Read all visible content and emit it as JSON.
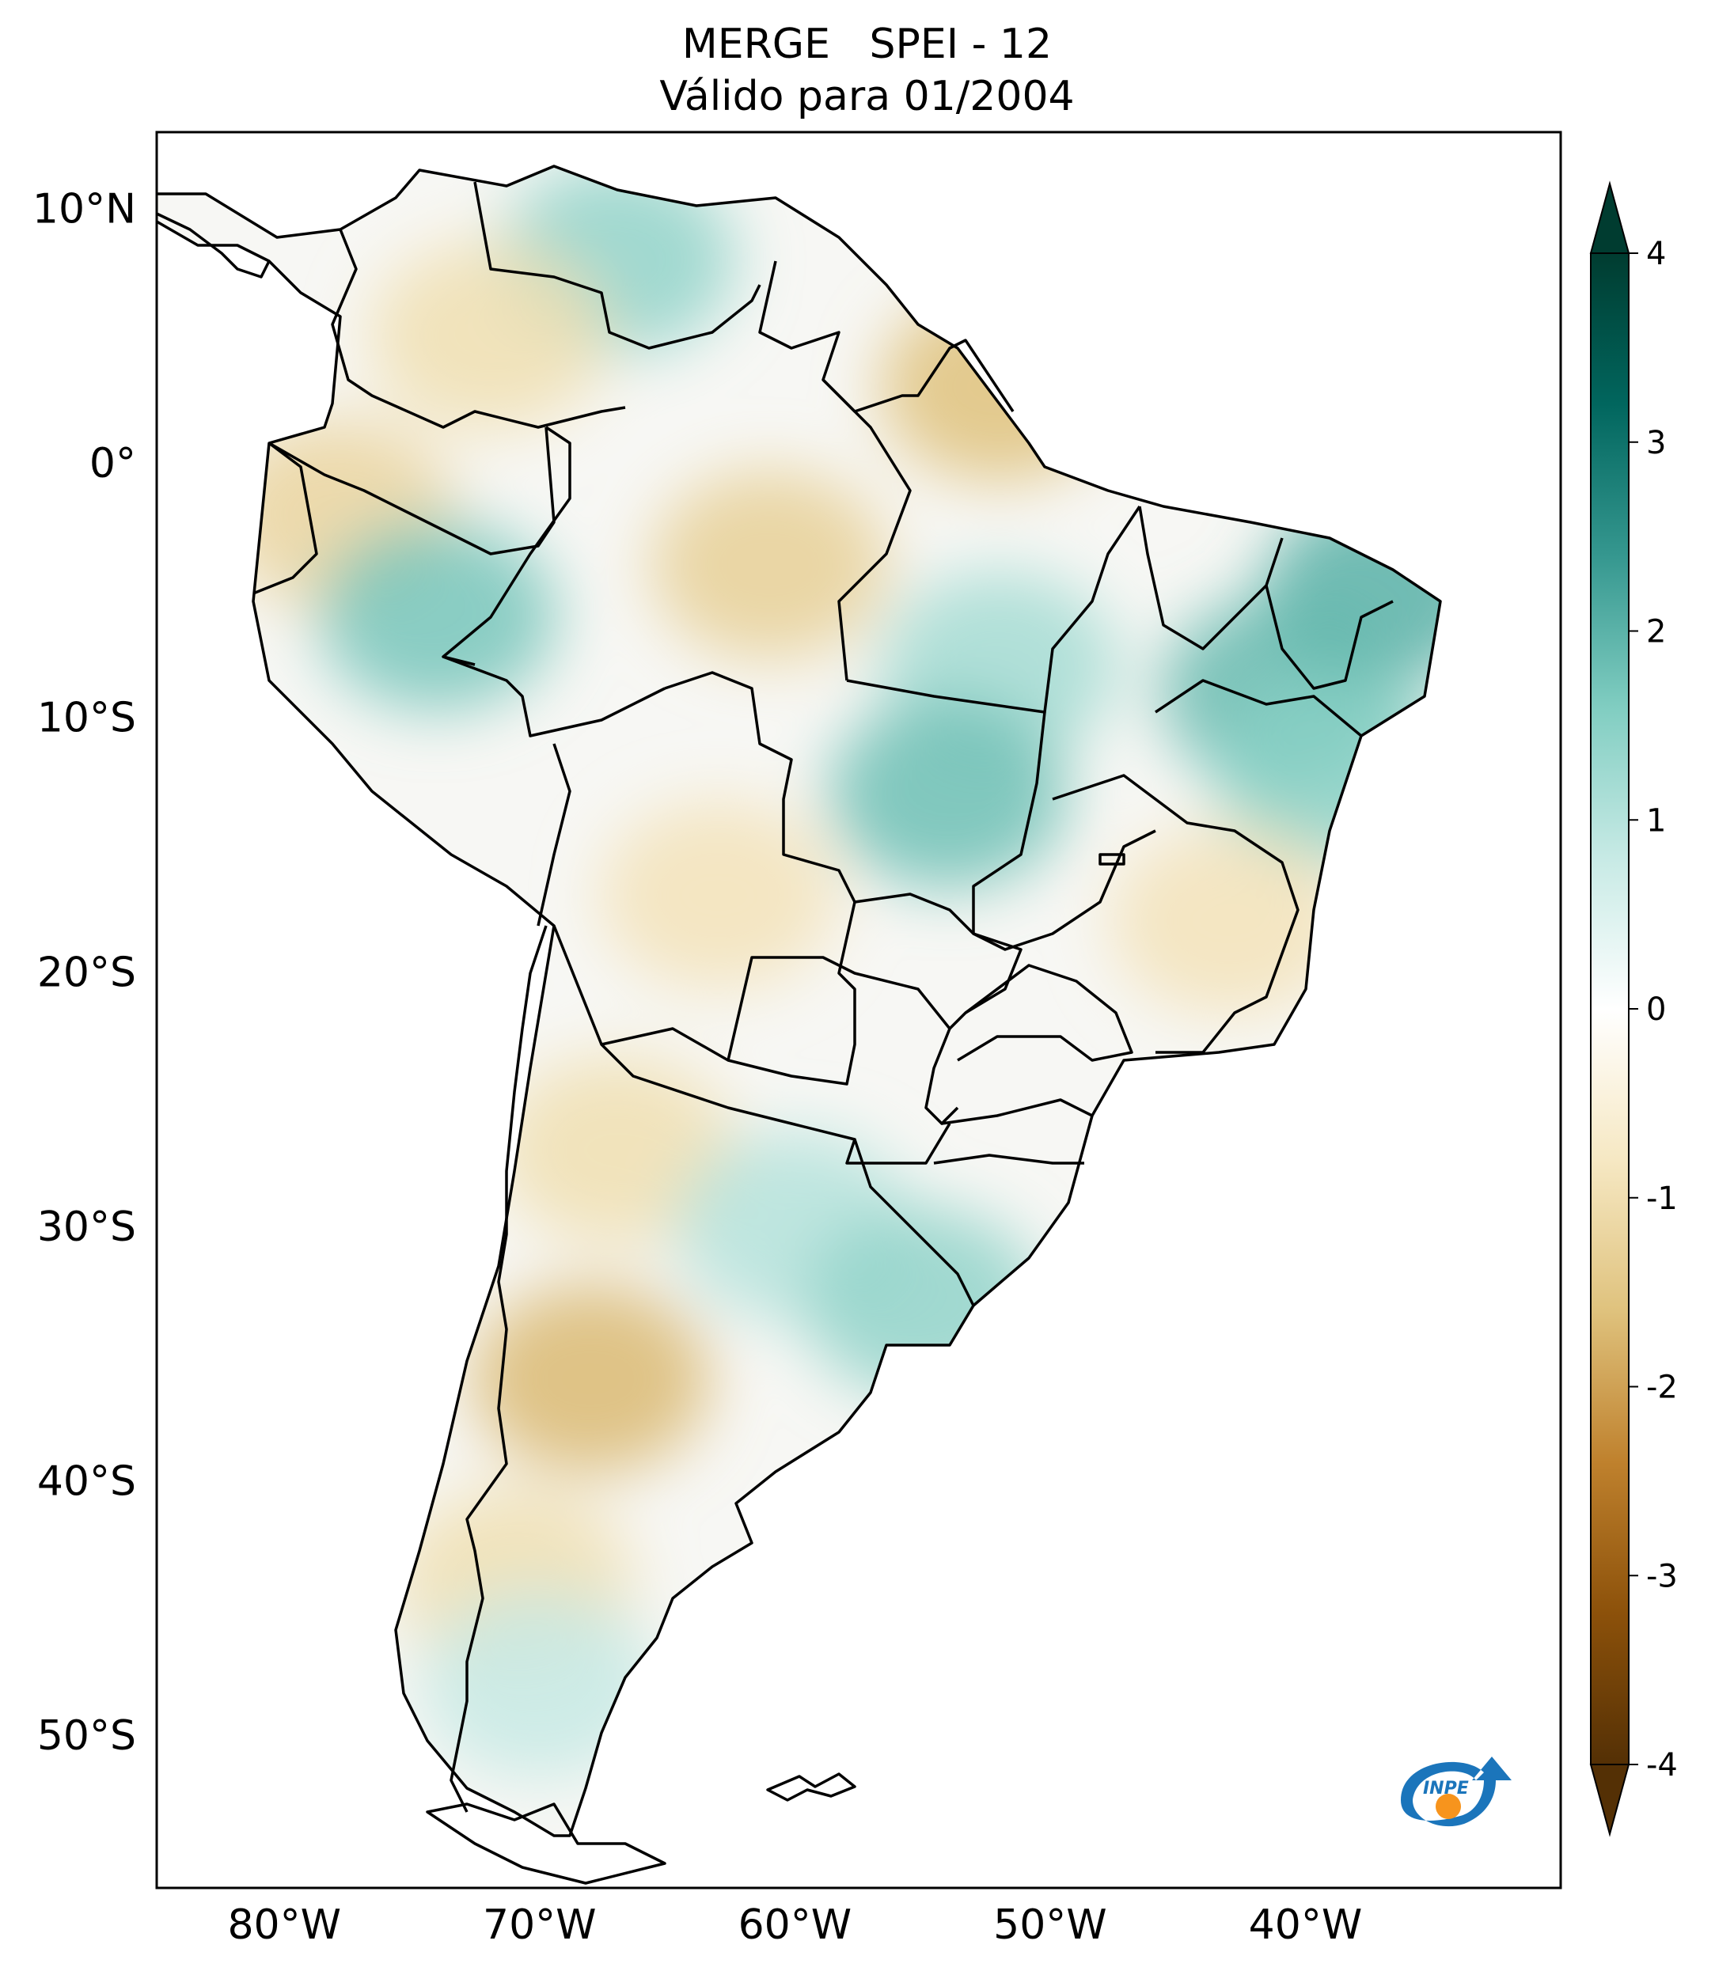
{
  "title": {
    "line1": "MERGE   SPEI - 12",
    "line2": "Válido para 01/2004"
  },
  "map": {
    "lon_range": [
      -85,
      -30
    ],
    "lat_range": [
      -56,
      13
    ],
    "lat_ticks": [
      {
        "value": 10,
        "label": "10°N"
      },
      {
        "value": 0,
        "label": "0°"
      },
      {
        "value": -10,
        "label": "10°S"
      },
      {
        "value": -20,
        "label": "20°S"
      },
      {
        "value": -30,
        "label": "30°S"
      },
      {
        "value": -40,
        "label": "40°S"
      },
      {
        "value": -50,
        "label": "50°S"
      }
    ],
    "lon_ticks": [
      {
        "value": -80,
        "label": "80°W"
      },
      {
        "value": -70,
        "label": "70°W"
      },
      {
        "value": -60,
        "label": "60°W"
      },
      {
        "value": -50,
        "label": "50°W"
      },
      {
        "value": -40,
        "label": "40°W"
      }
    ],
    "anomalies": [
      {
        "lon": -67,
        "lat": 8,
        "value": 1.4
      },
      {
        "lon": -72,
        "lat": 5,
        "value": -1.0
      },
      {
        "lon": -78,
        "lat": -2,
        "value": -1.2
      },
      {
        "lon": -74,
        "lat": -6,
        "value": 1.7
      },
      {
        "lon": -61,
        "lat": -4,
        "value": -1.3
      },
      {
        "lon": -52,
        "lat": 3,
        "value": -1.6
      },
      {
        "lon": -52,
        "lat": -8,
        "value": 1.2
      },
      {
        "lon": -54,
        "lat": -13,
        "value": 1.8
      },
      {
        "lon": -37,
        "lat": -5,
        "value": 2.0
      },
      {
        "lon": -41,
        "lat": -9,
        "value": 1.9
      },
      {
        "lon": -39,
        "lat": -12,
        "value": 1.5
      },
      {
        "lon": -43,
        "lat": -18,
        "value": -0.9
      },
      {
        "lon": -63,
        "lat": -17,
        "value": -0.9
      },
      {
        "lon": -67,
        "lat": -27,
        "value": -1.0
      },
      {
        "lon": -60,
        "lat": -30,
        "value": 1.0
      },
      {
        "lon": -55,
        "lat": -33,
        "value": 1.4
      },
      {
        "lon": -68,
        "lat": -36,
        "value": -1.7
      },
      {
        "lon": -71,
        "lat": -44,
        "value": -1.0
      },
      {
        "lon": -70,
        "lat": -48,
        "value": 0.8
      }
    ],
    "logo_text": "INPE"
  },
  "colorbar": {
    "ticks": [
      "4",
      "3",
      "2",
      "1",
      "0",
      "-1",
      "-2",
      "-3",
      "-4"
    ],
    "colors": [
      "#543005",
      "#8c510a",
      "#bf812d",
      "#dfc27d",
      "#f6e8c3",
      "#ffffff",
      "#c7eae5",
      "#80cdc1",
      "#35978f",
      "#01665e",
      "#003c30"
    ],
    "logo_colors": [
      "#1b75bb",
      "#f7941d"
    ]
  }
}
